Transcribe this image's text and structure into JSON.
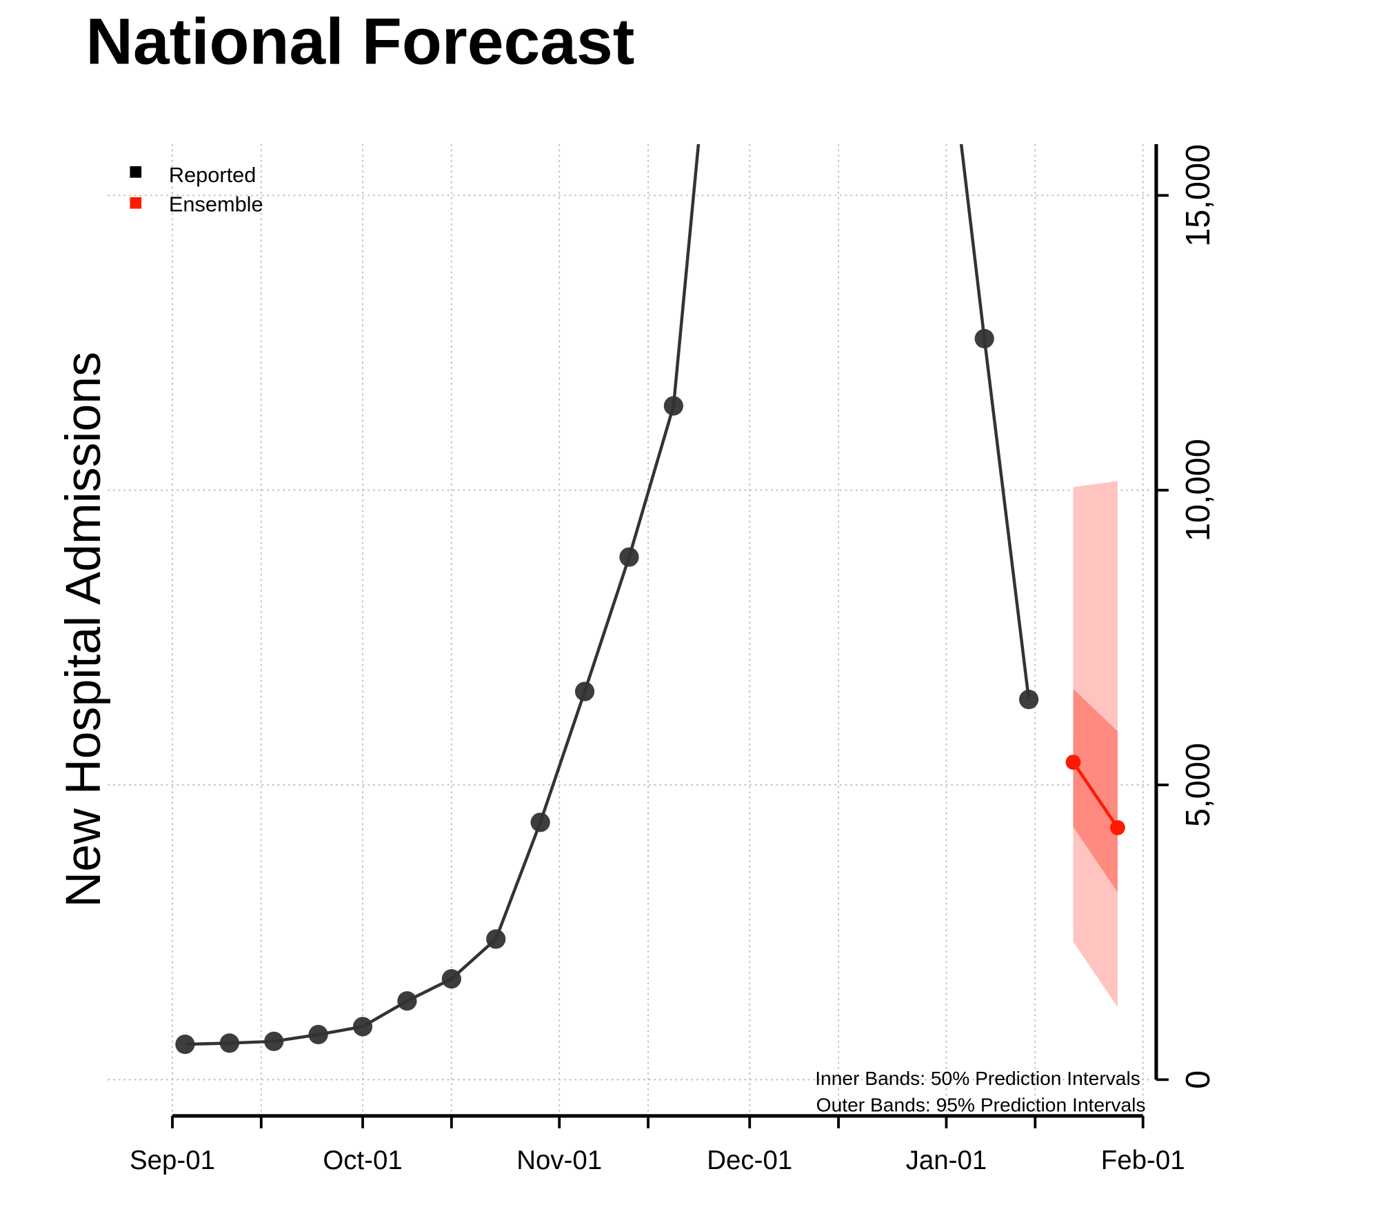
{
  "chart_data": {
    "type": "line",
    "title": "National Forecast",
    "ylabel": "New Hospital Admissions",
    "xlabel": "",
    "xlim": [
      "2021-09-01",
      "2022-02-01"
    ],
    "ylim": [
      0,
      15870
    ],
    "x_tick_labels": [
      "Sep-01",
      "Oct-01",
      "Nov-01",
      "Dec-01",
      "Jan-01",
      "Feb-01"
    ],
    "x_tick_dates": [
      "2021-09-01",
      "2021-09-15",
      "2021-10-01",
      "2021-10-15",
      "2021-11-01",
      "2021-11-15",
      "2021-12-01",
      "2021-12-15",
      "2022-01-01",
      "2022-01-15",
      "2022-02-01"
    ],
    "x_label_dates": [
      "2021-09-01",
      "2021-10-01",
      "2021-11-01",
      "2021-12-01",
      "2022-01-01",
      "2022-02-01"
    ],
    "y_ticks": [
      0,
      5000,
      10000,
      15000
    ],
    "y_tick_labels": [
      "0",
      "5,000",
      "10,000",
      "15,000"
    ],
    "y_axis_side": "right",
    "grid": true,
    "legend": {
      "placement": "top-left",
      "entries": [
        {
          "label": "Reported",
          "color": "#000000"
        },
        {
          "label": "Ensemble",
          "color": "#ff1a00"
        }
      ]
    },
    "annotations": [
      "Inner Bands: 50% Prediction Intervals",
      "Outer Bands: 95% Prediction Intervals"
    ],
    "series": [
      {
        "name": "Reported",
        "color": "#333333",
        "points": [
          {
            "x": "2021-09-03",
            "y": 600
          },
          {
            "x": "2021-09-10",
            "y": 620
          },
          {
            "x": "2021-09-17",
            "y": 650
          },
          {
            "x": "2021-09-24",
            "y": 765
          },
          {
            "x": "2021-10-01",
            "y": 900
          },
          {
            "x": "2021-10-08",
            "y": 1335
          },
          {
            "x": "2021-10-15",
            "y": 1710
          },
          {
            "x": "2021-10-22",
            "y": 2385
          },
          {
            "x": "2021-10-29",
            "y": 4365
          },
          {
            "x": "2021-11-05",
            "y": 6585
          },
          {
            "x": "2021-11-12",
            "y": 8865
          },
          {
            "x": "2021-11-19",
            "y": 11430
          },
          {
            "x": "2021-11-26",
            "y": 19350,
            "off_chart": true
          },
          {
            "x": "2021-12-31",
            "y": 18900,
            "off_chart": true
          },
          {
            "x": "2022-01-07",
            "y": 12570
          },
          {
            "x": "2022-01-14",
            "y": 6450
          }
        ]
      },
      {
        "name": "Ensemble",
        "color": "#ff1a00",
        "points": [
          {
            "x": "2022-01-21",
            "y": 5385
          },
          {
            "x": "2022-01-28",
            "y": 4275
          }
        ],
        "intervals": {
          "50": {
            "color": "#ff8a80",
            "lower": [
              4290,
              3180
            ],
            "upper": [
              6630,
              5910
            ]
          },
          "95": {
            "color": "#ffc4c0",
            "lower": [
              2340,
              1230
            ],
            "upper": [
              10050,
              10155
            ]
          }
        }
      }
    ]
  }
}
